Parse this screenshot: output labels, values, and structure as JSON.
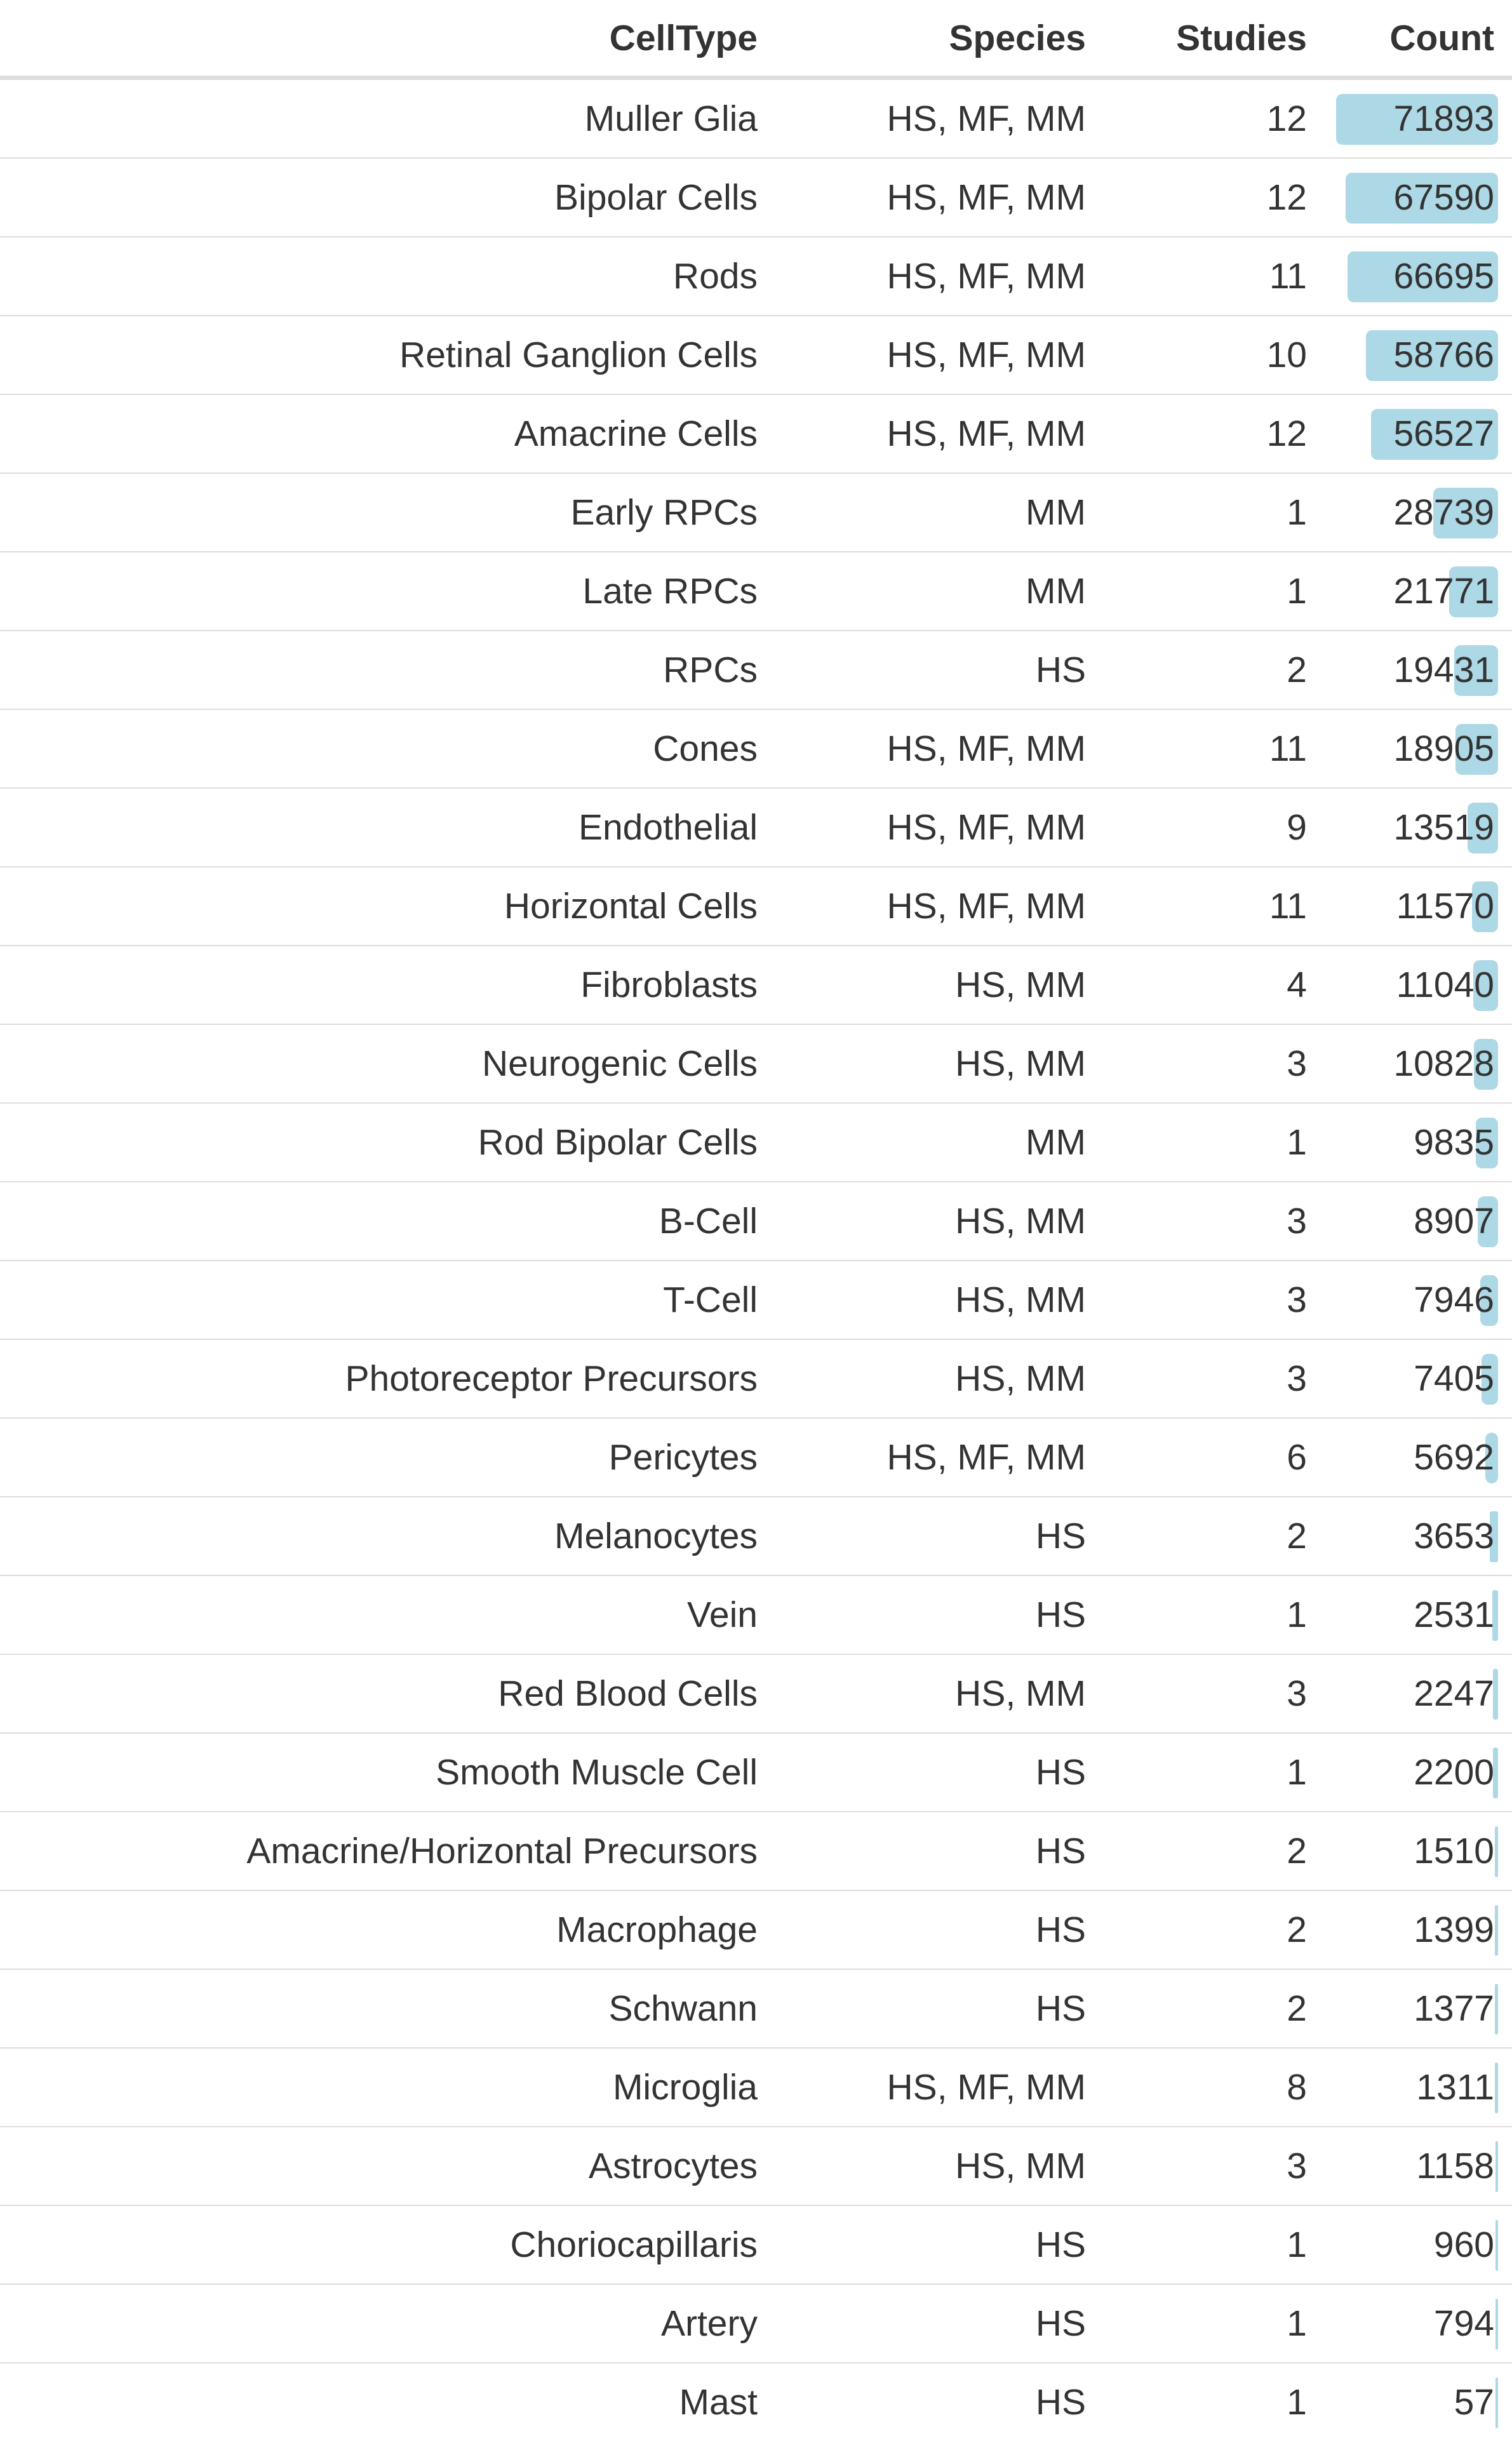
{
  "chart_data": {
    "type": "table",
    "columns": [
      "CellType",
      "Species",
      "Studies",
      "Count"
    ],
    "bar_color": "#add8e6",
    "rows": [
      {
        "celltype": "Muller Glia",
        "species": "HS, MF, MM",
        "studies": "12",
        "count": "71893",
        "count_value": 71893
      },
      {
        "celltype": "Bipolar Cells",
        "species": "HS, MF, MM",
        "studies": "12",
        "count": "67590",
        "count_value": 67590
      },
      {
        "celltype": "Rods",
        "species": "HS, MF, MM",
        "studies": "11",
        "count": "66695",
        "count_value": 66695
      },
      {
        "celltype": "Retinal Ganglion Cells",
        "species": "HS, MF, MM",
        "studies": "10",
        "count": "58766",
        "count_value": 58766
      },
      {
        "celltype": "Amacrine Cells",
        "species": "HS, MF, MM",
        "studies": "12",
        "count": "56527",
        "count_value": 56527
      },
      {
        "celltype": "Early RPCs",
        "species": "MM",
        "studies": "1",
        "count": "28739",
        "count_value": 28739
      },
      {
        "celltype": "Late RPCs",
        "species": "MM",
        "studies": "1",
        "count": "21771",
        "count_value": 21771
      },
      {
        "celltype": "RPCs",
        "species": "HS",
        "studies": "2",
        "count": "19431",
        "count_value": 19431
      },
      {
        "celltype": "Cones",
        "species": "HS, MF, MM",
        "studies": "11",
        "count": "18905",
        "count_value": 18905
      },
      {
        "celltype": "Endothelial",
        "species": "HS, MF, MM",
        "studies": "9",
        "count": "13519",
        "count_value": 13519
      },
      {
        "celltype": "Horizontal Cells",
        "species": "HS, MF, MM",
        "studies": "11",
        "count": "11570",
        "count_value": 11570
      },
      {
        "celltype": "Fibroblasts",
        "species": "HS, MM",
        "studies": "4",
        "count": "11040",
        "count_value": 11040
      },
      {
        "celltype": "Neurogenic Cells",
        "species": "HS, MM",
        "studies": "3",
        "count": "10828",
        "count_value": 10828
      },
      {
        "celltype": "Rod Bipolar Cells",
        "species": "MM",
        "studies": "1",
        "count": "9835",
        "count_value": 9835
      },
      {
        "celltype": "B-Cell",
        "species": "HS, MM",
        "studies": "3",
        "count": "8907",
        "count_value": 8907
      },
      {
        "celltype": "T-Cell",
        "species": "HS, MM",
        "studies": "3",
        "count": "7946",
        "count_value": 7946
      },
      {
        "celltype": "Photoreceptor Precursors",
        "species": "HS, MM",
        "studies": "3",
        "count": "7405",
        "count_value": 7405
      },
      {
        "celltype": "Pericytes",
        "species": "HS, MF, MM",
        "studies": "6",
        "count": "5692",
        "count_value": 5692
      },
      {
        "celltype": "Melanocytes",
        "species": "HS",
        "studies": "2",
        "count": "3653",
        "count_value": 3653
      },
      {
        "celltype": "Vein",
        "species": "HS",
        "studies": "1",
        "count": "2531",
        "count_value": 2531
      },
      {
        "celltype": "Red Blood Cells",
        "species": "HS, MM",
        "studies": "3",
        "count": "2247",
        "count_value": 2247
      },
      {
        "celltype": "Smooth Muscle Cell",
        "species": "HS",
        "studies": "1",
        "count": "2200",
        "count_value": 2200
      },
      {
        "celltype": "Amacrine/Horizontal Precursors",
        "species": "HS",
        "studies": "2",
        "count": "1510",
        "count_value": 1510
      },
      {
        "celltype": "Macrophage",
        "species": "HS",
        "studies": "2",
        "count": "1399",
        "count_value": 1399
      },
      {
        "celltype": "Schwann",
        "species": "HS",
        "studies": "2",
        "count": "1377",
        "count_value": 1377
      },
      {
        "celltype": "Microglia",
        "species": "HS, MF, MM",
        "studies": "8",
        "count": "1311",
        "count_value": 1311
      },
      {
        "celltype": "Astrocytes",
        "species": "HS, MM",
        "studies": "3",
        "count": "1158",
        "count_value": 1158
      },
      {
        "celltype": "Choriocapillaris",
        "species": "HS",
        "studies": "1",
        "count": "960",
        "count_value": 960
      },
      {
        "celltype": "Artery",
        "species": "HS",
        "studies": "1",
        "count": "794",
        "count_value": 794
      },
      {
        "celltype": "Mast",
        "species": "HS",
        "studies": "1",
        "count": "57",
        "count_value": 57
      }
    ]
  }
}
